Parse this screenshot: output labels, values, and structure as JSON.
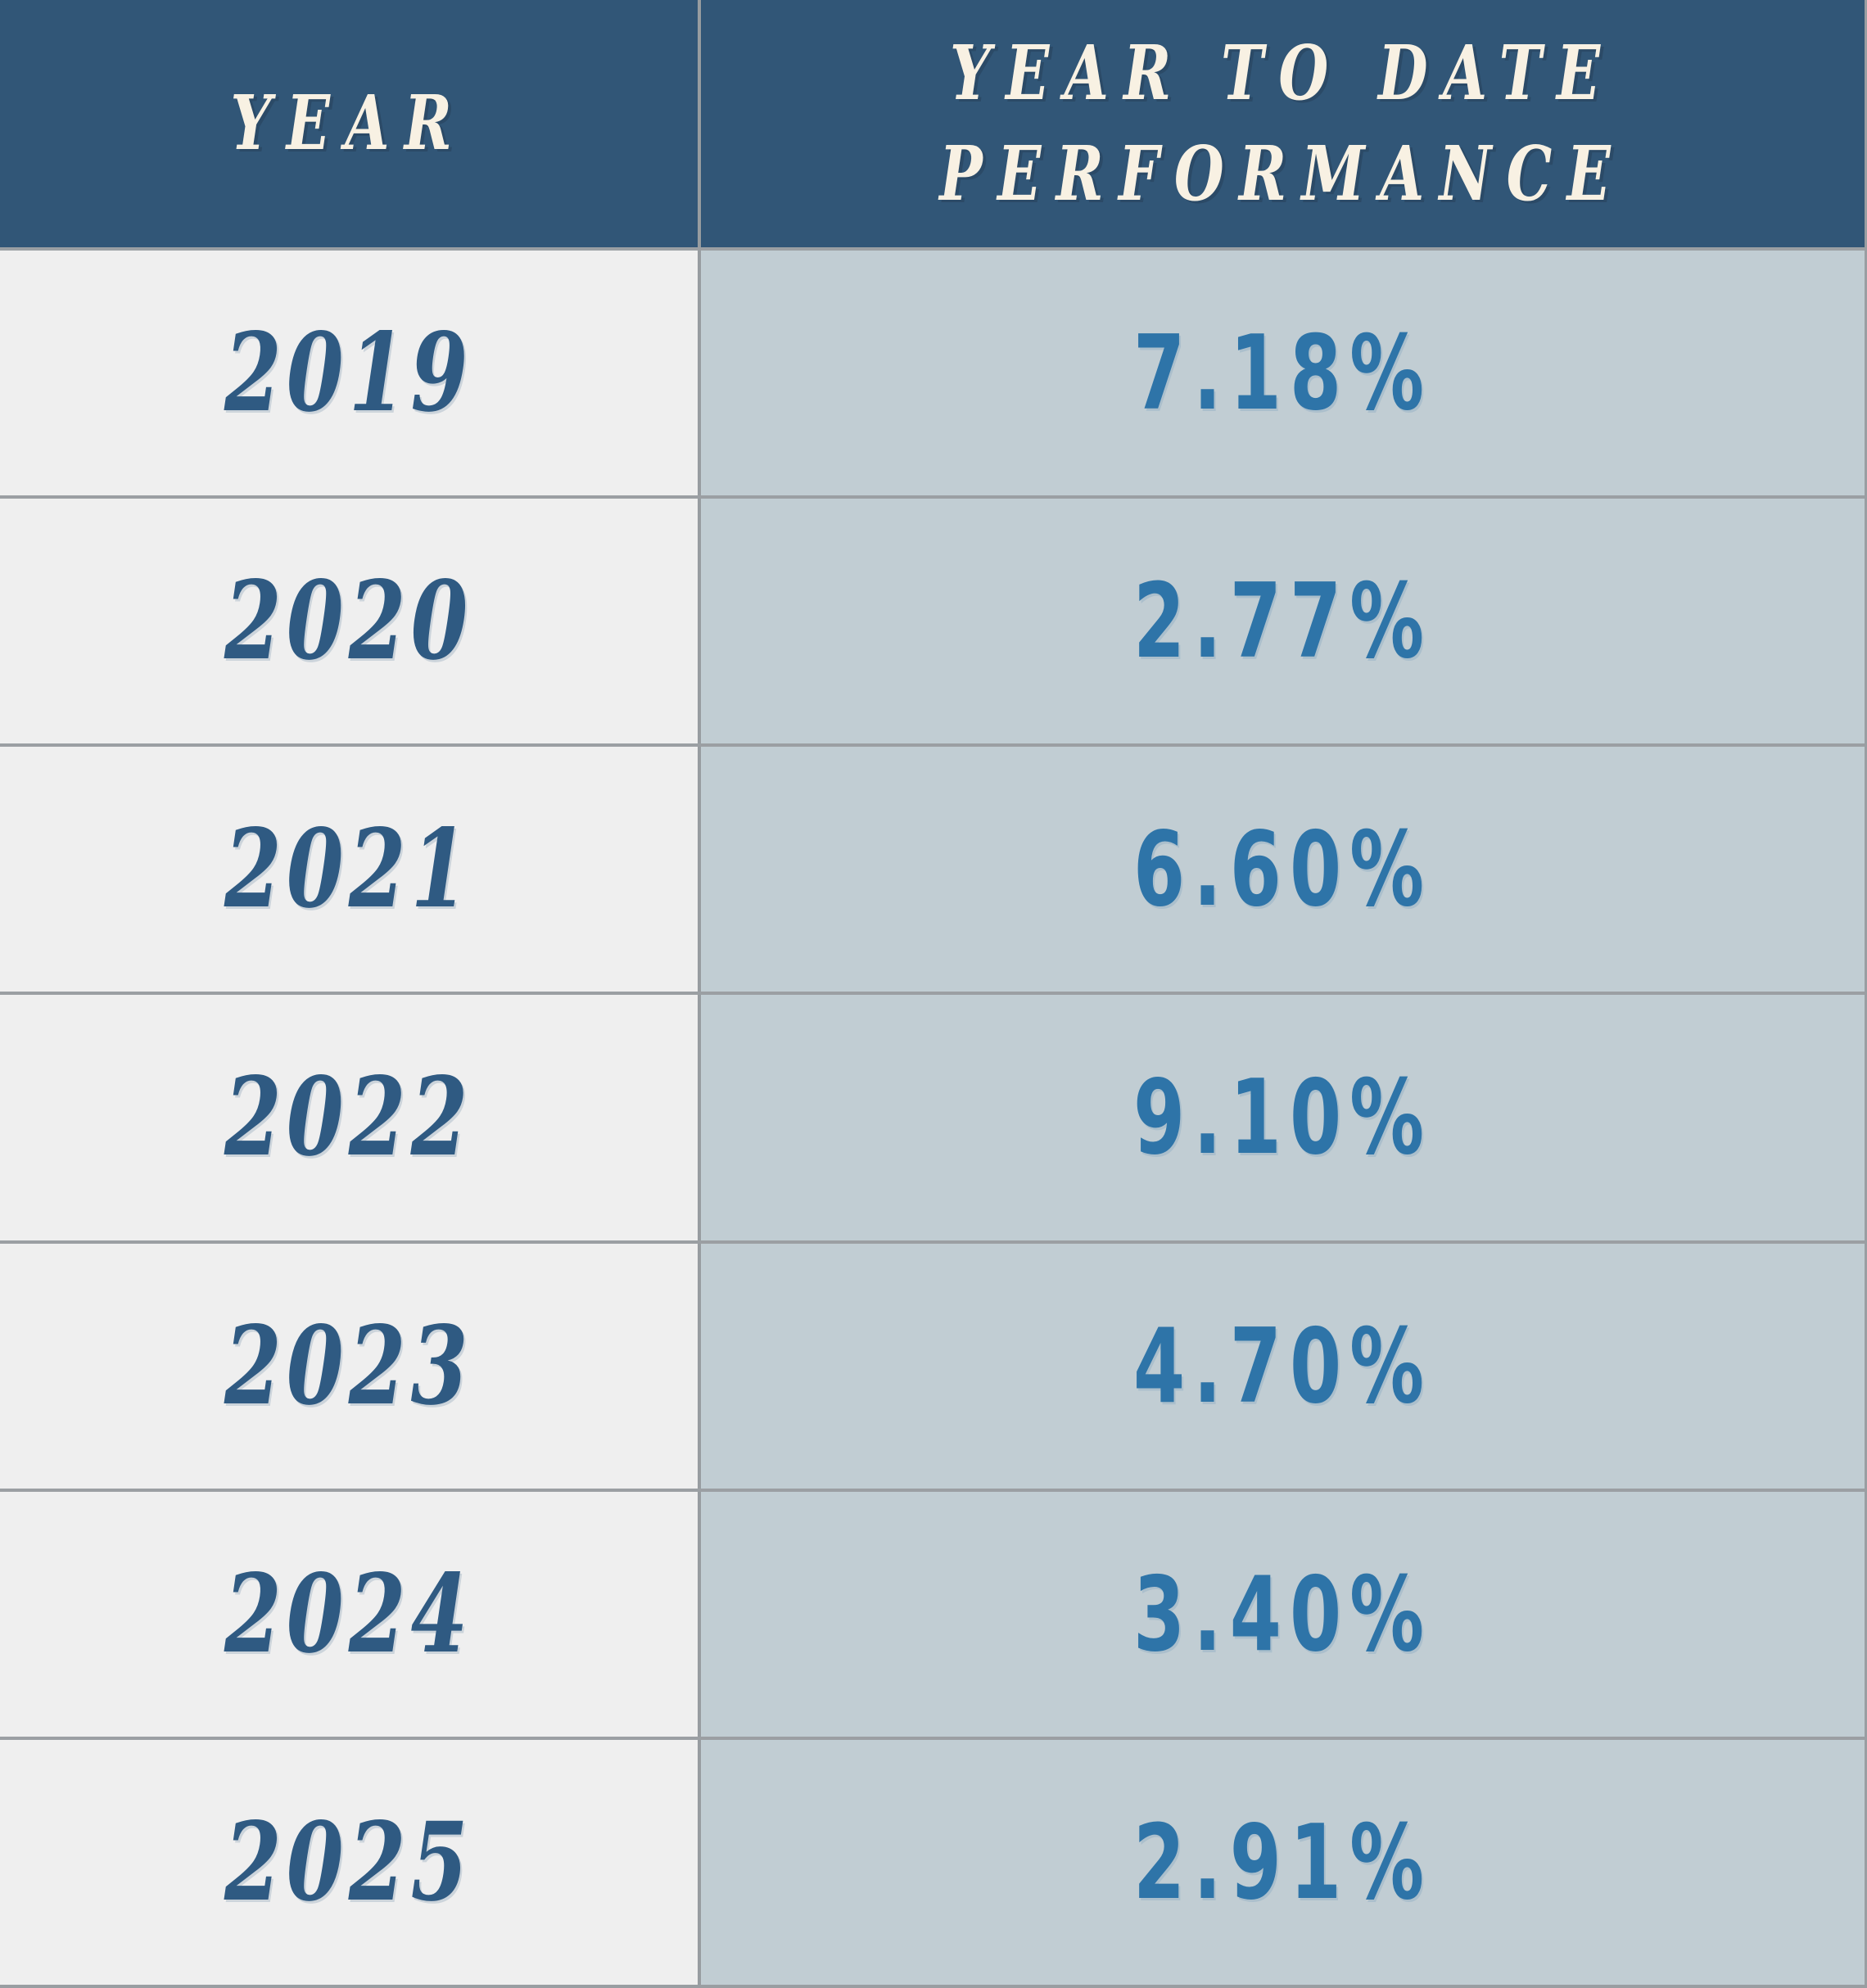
{
  "chart_data": {
    "type": "table",
    "columns": [
      "YEAR",
      "YEAR TO DATE PERFORMANCE"
    ],
    "rows": [
      {
        "year": "2019",
        "ytd_performance": "7.18%"
      },
      {
        "year": "2020",
        "ytd_performance": "2.77%"
      },
      {
        "year": "2021",
        "ytd_performance": "6.60%"
      },
      {
        "year": "2022",
        "ytd_performance": "9.10%"
      },
      {
        "year": "2023",
        "ytd_performance": "4.70%"
      },
      {
        "year": "2024",
        "ytd_performance": "3.40%"
      },
      {
        "year": "2025",
        "ytd_performance": "2.91%"
      }
    ]
  },
  "header": {
    "year_label": "YEAR",
    "perf_label_line1": "YEAR TO DATE",
    "perf_label_line2": "PERFORMANCE"
  },
  "rows": [
    {
      "year": "2019",
      "value": "7.18%"
    },
    {
      "year": "2020",
      "value": "2.77%"
    },
    {
      "year": "2021",
      "value": "6.60%"
    },
    {
      "year": "2022",
      "value": "9.10%"
    },
    {
      "year": "2023",
      "value": "4.70%"
    },
    {
      "year": "2024",
      "value": "3.40%"
    },
    {
      "year": "2025",
      "value": "2.91%"
    }
  ],
  "colors": {
    "header_bg": "#315677",
    "header_text": "#F8F1E3",
    "year_column_bg": "#EFEFEF",
    "shaded_value_cell_bg": "#C1CDD3",
    "white_value_cell_bg": "#FFFFFF",
    "year_text": "#2F5A82",
    "value_text": "#2E74A8",
    "divider": "#9B9FA3"
  }
}
